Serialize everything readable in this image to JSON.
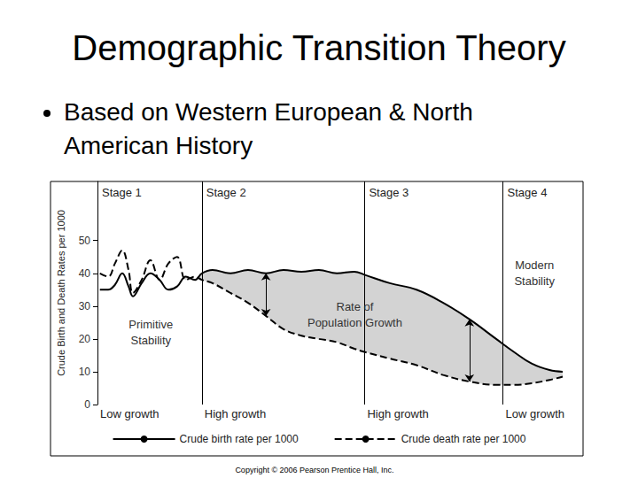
{
  "chart_data": {
    "type": "line",
    "title": "Demographic Transition Theory",
    "subtitle": "Based on Western European & North American History",
    "caption": "Copyright © 2006 Pearson Prentice Hall, Inc.",
    "y_label": "Crude Birth and Death Rates per 1000",
    "x": [
      0.5,
      2.2,
      3.6,
      5.1,
      6.4,
      7.3,
      9.1,
      10.9,
      12.8,
      14.6,
      16.4,
      18.2,
      20.1,
      21.5,
      23.7,
      27.4,
      31,
      34.7,
      38.3,
      42,
      45.6,
      49.3,
      52.9,
      55.1,
      60.2,
      65.7,
      71.2,
      76.6,
      82.1,
      85.8,
      89.4,
      93.1,
      95.8
    ],
    "series": [
      {
        "name": "Crude birth rate per 1000",
        "color": "#000000",
        "line_style": "solid",
        "values": [
          35,
          35,
          36.5,
          40,
          36,
          33,
          37,
          40,
          38,
          35,
          36,
          39,
          38,
          40,
          41,
          40,
          41,
          40,
          41,
          40.5,
          41,
          40,
          40.5,
          39.5,
          37,
          35,
          31,
          26,
          20,
          16,
          12.5,
          10.5,
          10
        ]
      },
      {
        "name": "Crude death rate per 1000",
        "color": "#000000",
        "line_style": "dashed",
        "values": [
          40,
          39,
          43,
          47,
          41,
          34,
          38,
          44,
          38,
          43,
          45,
          38,
          39,
          38,
          37,
          34,
          31,
          27,
          23,
          21,
          20,
          19,
          17,
          16,
          14,
          12,
          9,
          7,
          6,
          6,
          6.5,
          7.5,
          8.5
        ]
      }
    ],
    "xlim": [
      0,
      100
    ],
    "ylim": [
      0,
      68
    ],
    "yticks": [
      0,
      10,
      20,
      30,
      40,
      50
    ],
    "tick_labels": "y",
    "grid": false,
    "legend": "bottom",
    "stages": [
      {
        "label": "Stage 1",
        "start": 0,
        "growth": "Low growth"
      },
      {
        "label": "Stage 2",
        "start": 21.5,
        "growth": "High growth"
      },
      {
        "label": "Stage 3",
        "start": 55,
        "growth": "High growth"
      },
      {
        "label": "Stage 4",
        "start": 83.5,
        "growth": "Low growth"
      }
    ],
    "annotations": [
      {
        "text": "Primitive\nStability",
        "x": 11,
        "y": 22
      },
      {
        "text": "Rate of\nPopulation Growth",
        "x": 53,
        "y": 27.5
      },
      {
        "text": "Modern\nStability",
        "x": 90,
        "y": 40
      }
    ]
  }
}
